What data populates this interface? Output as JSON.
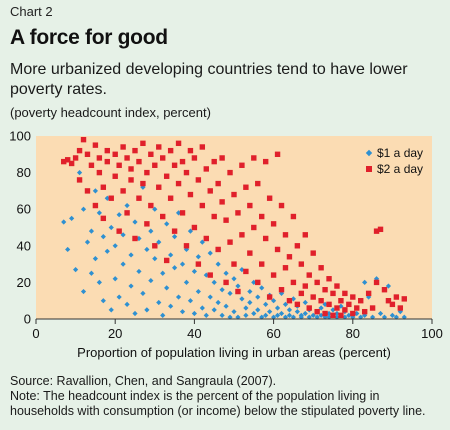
{
  "header": {
    "chart_number": "Chart 2",
    "title": "A force for good",
    "subtitle": "More urbanized developing countries tend to have lower poverty rates.",
    "unit_note": "(poverty headcount index, percent)"
  },
  "footer": {
    "source": "Source: Ravallion, Chen, and Sangraula (2007).",
    "note_line1": "Note: The headcount index is the percent of the population living in",
    "note_line2": "households with consumption (or income) below the stipulated poverty line."
  },
  "colors": {
    "plot_bg": "#fbdcb3",
    "page_bg": "#e6f1e7",
    "series_1": "#2e90d1",
    "series_2": "#e0202b"
  },
  "chart_data": {
    "type": "scatter",
    "title": "",
    "xlabel": "Proportion of population living in urban areas (percent)",
    "ylabel": "",
    "xlim": [
      0,
      100
    ],
    "ylim": [
      0,
      100
    ],
    "x_ticks": [
      "0",
      "20",
      "40",
      "60",
      "80",
      "100"
    ],
    "y_ticks": [
      "0",
      "20",
      "40",
      "60",
      "80",
      "100"
    ],
    "grid": false,
    "legend": "top-right",
    "series": [
      {
        "name": "$1 a day",
        "marker": "diamond",
        "points": [
          [
            7,
            53
          ],
          [
            8,
            38
          ],
          [
            9,
            55
          ],
          [
            10,
            27
          ],
          [
            11,
            80
          ],
          [
            12,
            15
          ],
          [
            12,
            60
          ],
          [
            13,
            42
          ],
          [
            14,
            48
          ],
          [
            14,
            25
          ],
          [
            15,
            70
          ],
          [
            15,
            33
          ],
          [
            16,
            20
          ],
          [
            16,
            58
          ],
          [
            17,
            45
          ],
          [
            17,
            10
          ],
          [
            18,
            37
          ],
          [
            18,
            66
          ],
          [
            19,
            50
          ],
          [
            19,
            5
          ],
          [
            20,
            22
          ],
          [
            20,
            40
          ],
          [
            21,
            57
          ],
          [
            21,
            12
          ],
          [
            22,
            30
          ],
          [
            22,
            46
          ],
          [
            23,
            8
          ],
          [
            23,
            62
          ],
          [
            24,
            35
          ],
          [
            24,
            18
          ],
          [
            25,
            53
          ],
          [
            25,
            3
          ],
          [
            26,
            26
          ],
          [
            26,
            44
          ],
          [
            27,
            72
          ],
          [
            27,
            14
          ],
          [
            28,
            38
          ],
          [
            28,
            5
          ],
          [
            29,
            48
          ],
          [
            29,
            21
          ],
          [
            30,
            33
          ],
          [
            30,
            60
          ],
          [
            31,
            9
          ],
          [
            31,
            42
          ],
          [
            32,
            25
          ],
          [
            32,
            2
          ],
          [
            33,
            52
          ],
          [
            33,
            17
          ],
          [
            34,
            35
          ],
          [
            34,
            7
          ],
          [
            35,
            45
          ],
          [
            35,
            28
          ],
          [
            36,
            12
          ],
          [
            36,
            58
          ],
          [
            37,
            30
          ],
          [
            37,
            4
          ],
          [
            38,
            38
          ],
          [
            38,
            20
          ],
          [
            39,
            48
          ],
          [
            39,
            10
          ],
          [
            40,
            26
          ],
          [
            40,
            3
          ],
          [
            41,
            34
          ],
          [
            41,
            15
          ],
          [
            42,
            42
          ],
          [
            42,
            6
          ],
          [
            43,
            24
          ],
          [
            43,
            2
          ],
          [
            44,
            36
          ],
          [
            44,
            12
          ],
          [
            45,
            20
          ],
          [
            45,
            5
          ],
          [
            46,
            30
          ],
          [
            46,
            9
          ],
          [
            47,
            16
          ],
          [
            47,
            2
          ],
          [
            48,
            25
          ],
          [
            48,
            7
          ],
          [
            49,
            14
          ],
          [
            49,
            1
          ],
          [
            50,
            22
          ],
          [
            50,
            4
          ],
          [
            51,
            18
          ],
          [
            51,
            1
          ],
          [
            52,
            11
          ],
          [
            52,
            27
          ],
          [
            53,
            6
          ],
          [
            53,
            2
          ],
          [
            54,
            15
          ],
          [
            54,
            9
          ],
          [
            55,
            3
          ],
          [
            55,
            20
          ],
          [
            56,
            12
          ],
          [
            56,
            5
          ],
          [
            57,
            1
          ],
          [
            57,
            17
          ],
          [
            58,
            8
          ],
          [
            58,
            2
          ],
          [
            59,
            13
          ],
          [
            59,
            4
          ],
          [
            60,
            1
          ],
          [
            60,
            10
          ],
          [
            61,
            6
          ],
          [
            61,
            2
          ],
          [
            62,
            14
          ],
          [
            62,
            3
          ],
          [
            63,
            1
          ],
          [
            63,
            8
          ],
          [
            64,
            5
          ],
          [
            64,
            2
          ],
          [
            65,
            11
          ],
          [
            65,
            1
          ],
          [
            66,
            4
          ],
          [
            66,
            7
          ],
          [
            67,
            2
          ],
          [
            67,
            1
          ],
          [
            68,
            9
          ],
          [
            68,
            3
          ],
          [
            69,
            1
          ],
          [
            69,
            5
          ],
          [
            70,
            2
          ],
          [
            70,
            12
          ],
          [
            71,
            1
          ],
          [
            71,
            4
          ],
          [
            72,
            6
          ],
          [
            72,
            2
          ],
          [
            73,
            1
          ],
          [
            73,
            8
          ],
          [
            74,
            3
          ],
          [
            74,
            1
          ],
          [
            75,
            2
          ],
          [
            75,
            5
          ],
          [
            76,
            1
          ],
          [
            76,
            3
          ],
          [
            77,
            7
          ],
          [
            77,
            2
          ],
          [
            78,
            1
          ],
          [
            78,
            4
          ],
          [
            79,
            2
          ],
          [
            80,
            1
          ],
          [
            81,
            3
          ],
          [
            82,
            1
          ],
          [
            83,
            20
          ],
          [
            83,
            2
          ],
          [
            84,
            12
          ],
          [
            85,
            1
          ],
          [
            86,
            22
          ],
          [
            87,
            3
          ],
          [
            88,
            1
          ],
          [
            89,
            18
          ],
          [
            90,
            2
          ],
          [
            91,
            1
          ],
          [
            92,
            4
          ],
          [
            93,
            1
          ]
        ]
      },
      {
        "name": "$2 a day",
        "marker": "square",
        "points": [
          [
            7,
            86
          ],
          [
            8,
            87
          ],
          [
            9,
            85
          ],
          [
            10,
            88
          ],
          [
            11,
            76
          ],
          [
            11,
            92
          ],
          [
            12,
            98
          ],
          [
            13,
            90
          ],
          [
            13,
            70
          ],
          [
            14,
            84
          ],
          [
            15,
            95
          ],
          [
            15,
            62
          ],
          [
            16,
            80
          ],
          [
            16,
            88
          ],
          [
            17,
            72
          ],
          [
            17,
            55
          ],
          [
            18,
            86
          ],
          [
            18,
            92
          ],
          [
            19,
            66
          ],
          [
            20,
            78
          ],
          [
            20,
            90
          ],
          [
            21,
            84
          ],
          [
            21,
            48
          ],
          [
            22,
            94
          ],
          [
            22,
            70
          ],
          [
            23,
            88
          ],
          [
            23,
            58
          ],
          [
            24,
            76
          ],
          [
            24,
            82
          ],
          [
            25,
            92
          ],
          [
            25,
            44
          ],
          [
            26,
            86
          ],
          [
            26,
            66
          ],
          [
            27,
            96
          ],
          [
            27,
            74
          ],
          [
            28,
            80
          ],
          [
            28,
            52
          ],
          [
            29,
            90
          ],
          [
            29,
            62
          ],
          [
            30,
            84
          ],
          [
            30,
            40
          ],
          [
            31,
            94
          ],
          [
            31,
            72
          ],
          [
            32,
            88
          ],
          [
            32,
            56
          ],
          [
            33,
            78
          ],
          [
            33,
            32
          ],
          [
            34,
            92
          ],
          [
            34,
            66
          ],
          [
            35,
            84
          ],
          [
            35,
            48
          ],
          [
            36,
            96
          ],
          [
            36,
            74
          ],
          [
            37,
            86
          ],
          [
            37,
            58
          ],
          [
            38,
            80
          ],
          [
            38,
            40
          ],
          [
            39,
            92
          ],
          [
            39,
            68
          ],
          [
            40,
            88
          ],
          [
            40,
            50
          ],
          [
            41,
            76
          ],
          [
            41,
            30
          ],
          [
            42,
            94
          ],
          [
            42,
            62
          ],
          [
            43,
            82
          ],
          [
            43,
            44
          ],
          [
            44,
            70
          ],
          [
            44,
            24
          ],
          [
            45,
            86
          ],
          [
            45,
            56
          ],
          [
            46,
            74
          ],
          [
            46,
            38
          ],
          [
            47,
            88
          ],
          [
            47,
            64
          ],
          [
            48,
            54
          ],
          [
            48,
            20
          ],
          [
            49,
            80
          ],
          [
            49,
            42
          ],
          [
            50,
            68
          ],
          [
            50,
            30
          ],
          [
            51,
            58
          ],
          [
            51,
            15
          ],
          [
            52,
            84
          ],
          [
            52,
            46
          ],
          [
            53,
            72
          ],
          [
            53,
            26
          ],
          [
            54,
            62
          ],
          [
            54,
            36
          ],
          [
            55,
            88
          ],
          [
            55,
            50
          ],
          [
            56,
            74
          ],
          [
            56,
            20
          ],
          [
            57,
            56
          ],
          [
            57,
            30
          ],
          [
            58,
            86
          ],
          [
            58,
            44
          ],
          [
            59,
            66
          ],
          [
            59,
            12
          ],
          [
            60,
            52
          ],
          [
            60,
            24
          ],
          [
            61,
            90
          ],
          [
            61,
            38
          ],
          [
            62,
            62
          ],
          [
            62,
            16
          ],
          [
            63,
            46
          ],
          [
            63,
            28
          ],
          [
            64,
            34
          ],
          [
            64,
            10
          ],
          [
            65,
            56
          ],
          [
            65,
            20
          ],
          [
            66,
            40
          ],
          [
            66,
            8
          ],
          [
            67,
            30
          ],
          [
            67,
            14
          ],
          [
            68,
            46
          ],
          [
            68,
            18
          ],
          [
            69,
            24
          ],
          [
            69,
            6
          ],
          [
            70,
            36
          ],
          [
            70,
            12
          ],
          [
            71,
            20
          ],
          [
            71,
            4
          ],
          [
            72,
            28
          ],
          [
            72,
            10
          ],
          [
            73,
            16
          ],
          [
            73,
            3
          ],
          [
            74,
            22
          ],
          [
            74,
            8
          ],
          [
            75,
            14
          ],
          [
            75,
            2
          ],
          [
            76,
            18
          ],
          [
            76,
            6
          ],
          [
            77,
            10
          ],
          [
            77,
            2
          ],
          [
            78,
            14
          ],
          [
            78,
            5
          ],
          [
            79,
            8
          ],
          [
            80,
            12
          ],
          [
            80,
            3
          ],
          [
            81,
            6
          ],
          [
            82,
            10
          ],
          [
            83,
            4
          ],
          [
            84,
            14
          ],
          [
            85,
            6
          ],
          [
            86,
            48
          ],
          [
            86,
            20
          ],
          [
            87,
            49
          ],
          [
            88,
            16
          ],
          [
            89,
            10
          ],
          [
            90,
            8
          ],
          [
            91,
            12
          ],
          [
            92,
            6
          ],
          [
            93,
            11
          ]
        ]
      }
    ]
  }
}
